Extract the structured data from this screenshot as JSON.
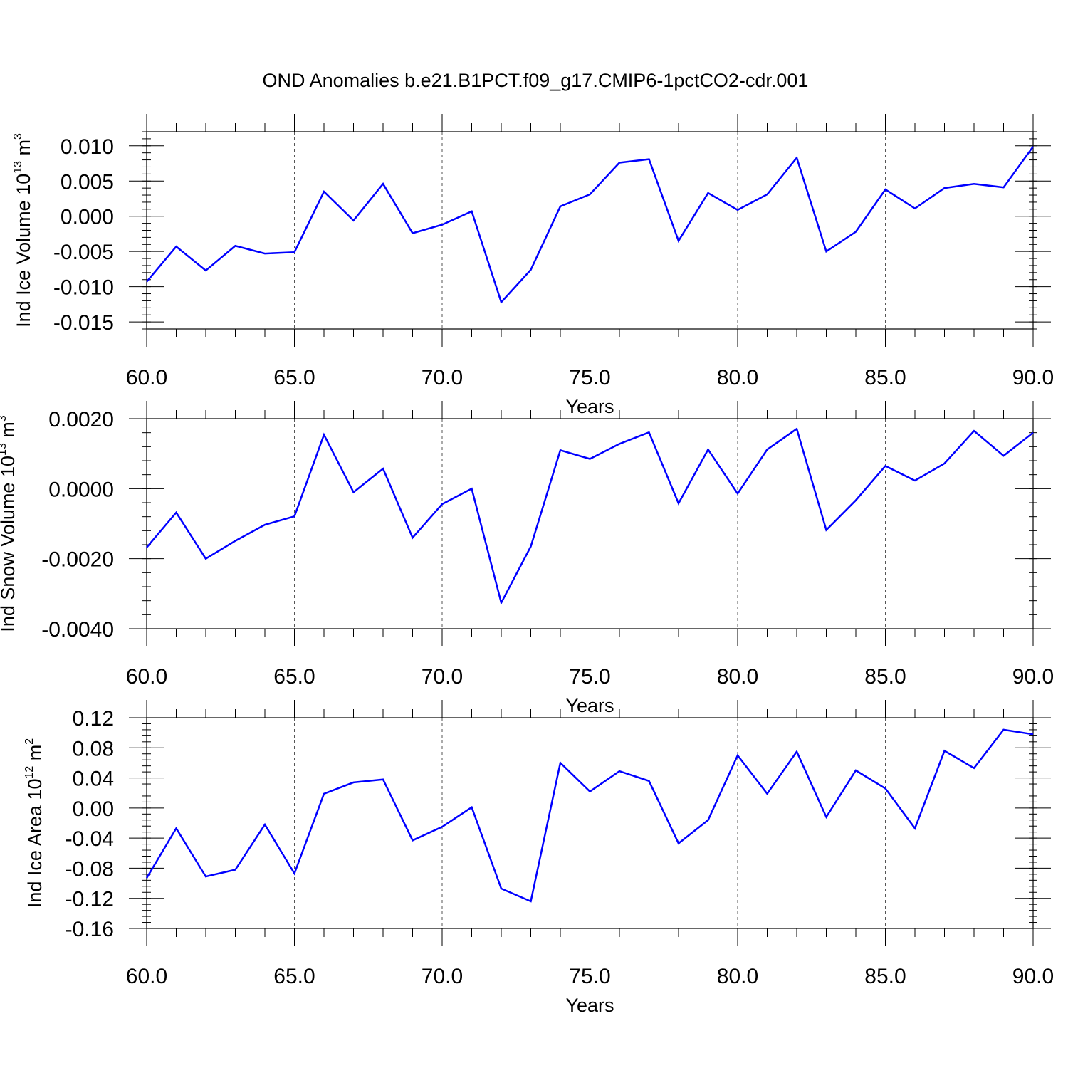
{
  "title": "OND Anomalies b.e21.B1PCT.f09_g17.CMIP6-1pctCO2-cdr.001",
  "chart_data": [
    {
      "type": "line",
      "xlabel": "Years",
      "ylabel": {
        "text": "Ind Ice Volume 10",
        "exp1": "13",
        "unit": " m",
        "exp2": "3"
      },
      "xlim": [
        60,
        90
      ],
      "ylim": [
        -0.016,
        0.012
      ],
      "xticks": [
        60,
        65,
        70,
        75,
        80,
        85,
        90
      ],
      "xtick_labels": [
        "60.0",
        "65.0",
        "70.0",
        "75.0",
        "80.0",
        "85.0",
        "90.0"
      ],
      "yticks": [
        -0.015,
        -0.01,
        -0.005,
        0.0,
        0.005,
        0.01
      ],
      "ytick_labels": [
        "-0.015",
        "-0.010",
        "-0.005",
        "0.000",
        "0.005",
        "0.010"
      ],
      "x": [
        60,
        61,
        62,
        63,
        64,
        65,
        66,
        67,
        68,
        69,
        70,
        71,
        72,
        73,
        74,
        75,
        76,
        77,
        78,
        79,
        80,
        81,
        82,
        83,
        84,
        85,
        86,
        87,
        88,
        89,
        90
      ],
      "series": [
        {
          "name": "Ind Ice Volume",
          "color": "#0000ff",
          "values": [
            -0.0093,
            -0.0043,
            -0.0077,
            -0.0042,
            -0.0053,
            -0.0051,
            0.0035,
            -0.0006,
            0.0046,
            -0.0024,
            -0.0012,
            0.0007,
            -0.0122,
            -0.0076,
            0.0014,
            0.0031,
            0.0076,
            0.0081,
            -0.0035,
            0.0033,
            0.0009,
            0.0031,
            0.0083,
            -0.005,
            -0.0022,
            0.0038,
            0.0011,
            0.004,
            0.0046,
            0.0041,
            0.0099
          ]
        }
      ]
    },
    {
      "type": "line",
      "xlabel": "Years",
      "ylabel": {
        "text": "Ind Snow Volume 10",
        "exp1": "13",
        "unit": " m",
        "exp2": "3"
      },
      "xlim": [
        60,
        90
      ],
      "ylim": [
        -0.004,
        0.002
      ],
      "xticks": [
        60,
        65,
        70,
        75,
        80,
        85,
        90
      ],
      "xtick_labels": [
        "60.0",
        "65.0",
        "70.0",
        "75.0",
        "80.0",
        "85.0",
        "90.0"
      ],
      "yticks": [
        -0.004,
        -0.002,
        0.0,
        0.002
      ],
      "ytick_labels": [
        "-0.0040",
        "-0.0020",
        "0.0000",
        "0.0020"
      ],
      "x": [
        60,
        61,
        62,
        63,
        64,
        65,
        66,
        67,
        68,
        69,
        70,
        71,
        72,
        73,
        74,
        75,
        76,
        77,
        78,
        79,
        80,
        81,
        82,
        83,
        84,
        85,
        86,
        87,
        88,
        89,
        90
      ],
      "series": [
        {
          "name": "Ind Snow Volume",
          "color": "#0000ff",
          "values": [
            -0.00168,
            -0.00068,
            -0.002,
            -0.00149,
            -0.00103,
            -0.00079,
            0.00154,
            -0.0001,
            0.00057,
            -0.0014,
            -0.00044,
            0.0,
            -0.00326,
            -0.00165,
            0.0011,
            0.00085,
            0.00128,
            0.00161,
            -0.00042,
            0.00112,
            -0.00014,
            0.00112,
            0.00171,
            -0.00118,
            -0.00033,
            0.00065,
            0.00023,
            0.00072,
            0.00165,
            0.00094,
            0.0016
          ]
        }
      ]
    },
    {
      "type": "line",
      "xlabel": "Years",
      "ylabel": {
        "text": "Ind Ice Area 10",
        "exp1": "12",
        "unit": " m",
        "exp2": "2"
      },
      "xlim": [
        60,
        90
      ],
      "ylim": [
        -0.16,
        0.12
      ],
      "xticks": [
        60,
        65,
        70,
        75,
        80,
        85,
        90
      ],
      "xtick_labels": [
        "60.0",
        "65.0",
        "70.0",
        "75.0",
        "80.0",
        "85.0",
        "90.0"
      ],
      "yticks": [
        -0.16,
        -0.12,
        -0.08,
        -0.04,
        0.0,
        0.04,
        0.08,
        0.12
      ],
      "ytick_labels": [
        "-0.16",
        "-0.12",
        "-0.08",
        "-0.04",
        "0.00",
        "0.04",
        "0.08",
        "0.12"
      ],
      "x": [
        60,
        61,
        62,
        63,
        64,
        65,
        66,
        67,
        68,
        69,
        70,
        71,
        72,
        73,
        74,
        75,
        76,
        77,
        78,
        79,
        80,
        81,
        82,
        83,
        84,
        85,
        86,
        87,
        88,
        89,
        90
      ],
      "series": [
        {
          "name": "Ind Ice Area",
          "color": "#0000ff",
          "values": [
            -0.093,
            -0.027,
            -0.091,
            -0.082,
            -0.022,
            -0.087,
            0.019,
            0.034,
            0.038,
            -0.043,
            -0.025,
            0.001,
            -0.107,
            -0.124,
            0.06,
            0.022,
            0.049,
            0.036,
            -0.047,
            -0.016,
            0.07,
            0.019,
            0.075,
            -0.012,
            0.05,
            0.026,
            -0.027,
            0.076,
            0.053,
            0.104,
            0.098
          ]
        }
      ]
    }
  ]
}
